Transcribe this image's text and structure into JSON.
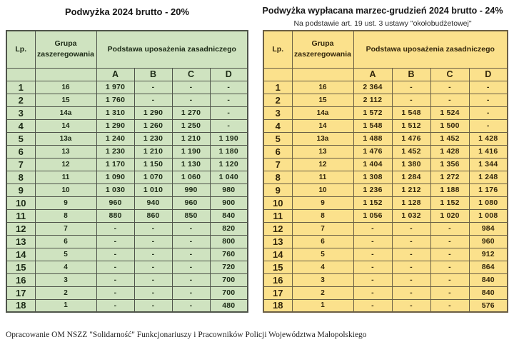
{
  "left_table": {
    "title": "Podwyżka 2024 brutto - 20%",
    "colors": {
      "bg": "#cfe3c0",
      "border": "#4f544a",
      "text": "#1c2a16"
    },
    "headers": {
      "lp": "Lp.",
      "group": "Grupa zaszeregowania",
      "base": "Podstawa uposażenia zasadniczego",
      "cols": [
        "A",
        "B",
        "C",
        "D"
      ]
    },
    "rows": [
      [
        "1",
        "16",
        "1 970",
        "-",
        "-",
        "-"
      ],
      [
        "2",
        "15",
        "1 760",
        "-",
        "-",
        "-"
      ],
      [
        "3",
        "14a",
        "1 310",
        "1 290",
        "1 270",
        "-"
      ],
      [
        "4",
        "14",
        "1 290",
        "1 260",
        "1 250",
        "-"
      ],
      [
        "5",
        "13a",
        "1 240",
        "1 230",
        "1 210",
        "1 190"
      ],
      [
        "6",
        "13",
        "1 230",
        "1 210",
        "1 190",
        "1 180"
      ],
      [
        "7",
        "12",
        "1 170",
        "1 150",
        "1 130",
        "1 120"
      ],
      [
        "8",
        "11",
        "1 090",
        "1 070",
        "1 060",
        "1 040"
      ],
      [
        "9",
        "10",
        "1 030",
        "1 010",
        "990",
        "980"
      ],
      [
        "10",
        "9",
        "960",
        "940",
        "960",
        "900"
      ],
      [
        "11",
        "8",
        "880",
        "860",
        "850",
        "840"
      ],
      [
        "12",
        "7",
        "-",
        "-",
        "-",
        "820"
      ],
      [
        "13",
        "6",
        "-",
        "-",
        "-",
        "800"
      ],
      [
        "14",
        "5",
        "-",
        "-",
        "-",
        "760"
      ],
      [
        "15",
        "4",
        "-",
        "-",
        "-",
        "720"
      ],
      [
        "16",
        "3",
        "-",
        "-",
        "-",
        "700"
      ],
      [
        "17",
        "2",
        "-",
        "-",
        "-",
        "700"
      ],
      [
        "18",
        "1",
        "-",
        "-",
        "-",
        "480"
      ]
    ]
  },
  "right_table": {
    "title": "Podwyżka wypłacana marzec-grudzień 2024 brutto - 24%",
    "subtitle": "Na podstawie art. 19 ust. 3 ustawy \"okołobudżetowej\"",
    "colors": {
      "bg": "#fbe18c",
      "border": "#6b5f45",
      "text": "#33260b"
    },
    "headers": {
      "lp": "Lp.",
      "group": "Grupa zaszeregowania",
      "base": "Podstawa uposażenia zasadniczego",
      "cols": [
        "A",
        "B",
        "C",
        "D"
      ]
    },
    "rows": [
      [
        "1",
        "16",
        "2 364",
        "-",
        "-",
        "-"
      ],
      [
        "2",
        "15",
        "2 112",
        "-",
        "-",
        "-"
      ],
      [
        "3",
        "14a",
        "1 572",
        "1 548",
        "1 524",
        "-"
      ],
      [
        "4",
        "14",
        "1 548",
        "1 512",
        "1 500",
        "-"
      ],
      [
        "5",
        "13a",
        "1 488",
        "1 476",
        "1 452",
        "1 428"
      ],
      [
        "6",
        "13",
        "1 476",
        "1 452",
        "1 428",
        "1 416"
      ],
      [
        "7",
        "12",
        "1 404",
        "1 380",
        "1 356",
        "1 344"
      ],
      [
        "8",
        "11",
        "1 308",
        "1 284",
        "1 272",
        "1 248"
      ],
      [
        "9",
        "10",
        "1 236",
        "1 212",
        "1 188",
        "1 176"
      ],
      [
        "10",
        "9",
        "1 152",
        "1 128",
        "1 152",
        "1 080"
      ],
      [
        "11",
        "8",
        "1 056",
        "1 032",
        "1 020",
        "1 008"
      ],
      [
        "12",
        "7",
        "-",
        "-",
        "-",
        "984"
      ],
      [
        "13",
        "6",
        "-",
        "-",
        "-",
        "960"
      ],
      [
        "14",
        "5",
        "-",
        "-",
        "-",
        "912"
      ],
      [
        "15",
        "4",
        "-",
        "-",
        "-",
        "864"
      ],
      [
        "16",
        "3",
        "-",
        "-",
        "-",
        "840"
      ],
      [
        "17",
        "2",
        "-",
        "-",
        "-",
        "840"
      ],
      [
        "18",
        "1",
        "-",
        "-",
        "-",
        "576"
      ]
    ]
  },
  "footer": {
    "text": "Opracowanie OM NSZZ \"Solidarność\" Funkcjonariuszy i Pracowników Policji Województwa Małopolskiego"
  }
}
